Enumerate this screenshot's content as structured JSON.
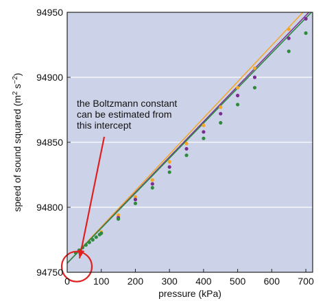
{
  "chart_data": {
    "type": "line",
    "xlabel": "pressure (kPa)",
    "ylabel_parts": {
      "main": "speed of sound squared (m",
      "sup1": "2",
      "mid": " s",
      "sup2": "−2",
      "end": ")"
    },
    "xlim": [
      0,
      720
    ],
    "ylim": [
      94750,
      94950
    ],
    "xticks": [
      "0",
      "100",
      "200",
      "300",
      "400",
      "500",
      "600",
      "700"
    ],
    "yticks": [
      "94750",
      "94800",
      "94850",
      "94900",
      "94950"
    ],
    "xtick_values": [
      0,
      100,
      200,
      300,
      400,
      500,
      600,
      700
    ],
    "ytick_values": [
      94750,
      94800,
      94850,
      94900,
      94950
    ],
    "grid": "horizontal",
    "background": "#ccd3e8",
    "intercept": 94757,
    "annotation": {
      "lines": [
        "the Boltzmann constant",
        "can be estimated from",
        "this intercept"
      ],
      "arrow_color": "#e02020",
      "circle_color": "#e02020"
    },
    "series": [
      {
        "color": "#f5a623",
        "line_x": [
          0,
          720
        ],
        "line_y": [
          94757,
          94958
        ],
        "points_x": [
          100,
          150,
          200,
          250,
          300,
          350,
          400,
          450,
          500,
          550,
          650,
          700
        ],
        "points_y": [
          94781,
          94794,
          94808,
          94821,
          94835,
          94849,
          94863,
          94877,
          94892,
          94907,
          94937,
          94951
        ]
      },
      {
        "color": "#7b2d8e",
        "line_x": [
          0,
          720
        ],
        "line_y": [
          94757,
          94953
        ],
        "points_x": [
          150,
          200,
          250,
          300,
          350,
          400,
          450,
          500,
          550,
          650,
          700
        ],
        "points_y": [
          94792,
          94806,
          94818,
          94831,
          94845,
          94858,
          94872,
          94886,
          94900,
          94930,
          94945
        ]
      },
      {
        "color": "#3a6fc4",
        "line_x": [
          0,
          720
        ],
        "line_y": [
          94757,
          94951
        ],
        "points_x": [],
        "points_y": []
      },
      {
        "color": "#2e8b3a",
        "line_x": [
          0,
          720
        ],
        "line_y": [
          94757,
          94951
        ],
        "points_x": [
          25,
          35,
          45,
          55,
          65,
          75,
          85,
          95,
          100,
          150,
          200,
          250,
          300,
          350,
          400,
          450,
          500,
          550,
          650,
          700
        ],
        "points_y": [
          94765,
          94767,
          94769,
          94771,
          94773,
          94775,
          94777,
          94779,
          94780,
          94791,
          94803,
          94815,
          94827,
          94840,
          94853,
          94865,
          94879,
          94892,
          94920,
          94934
        ]
      }
    ]
  }
}
